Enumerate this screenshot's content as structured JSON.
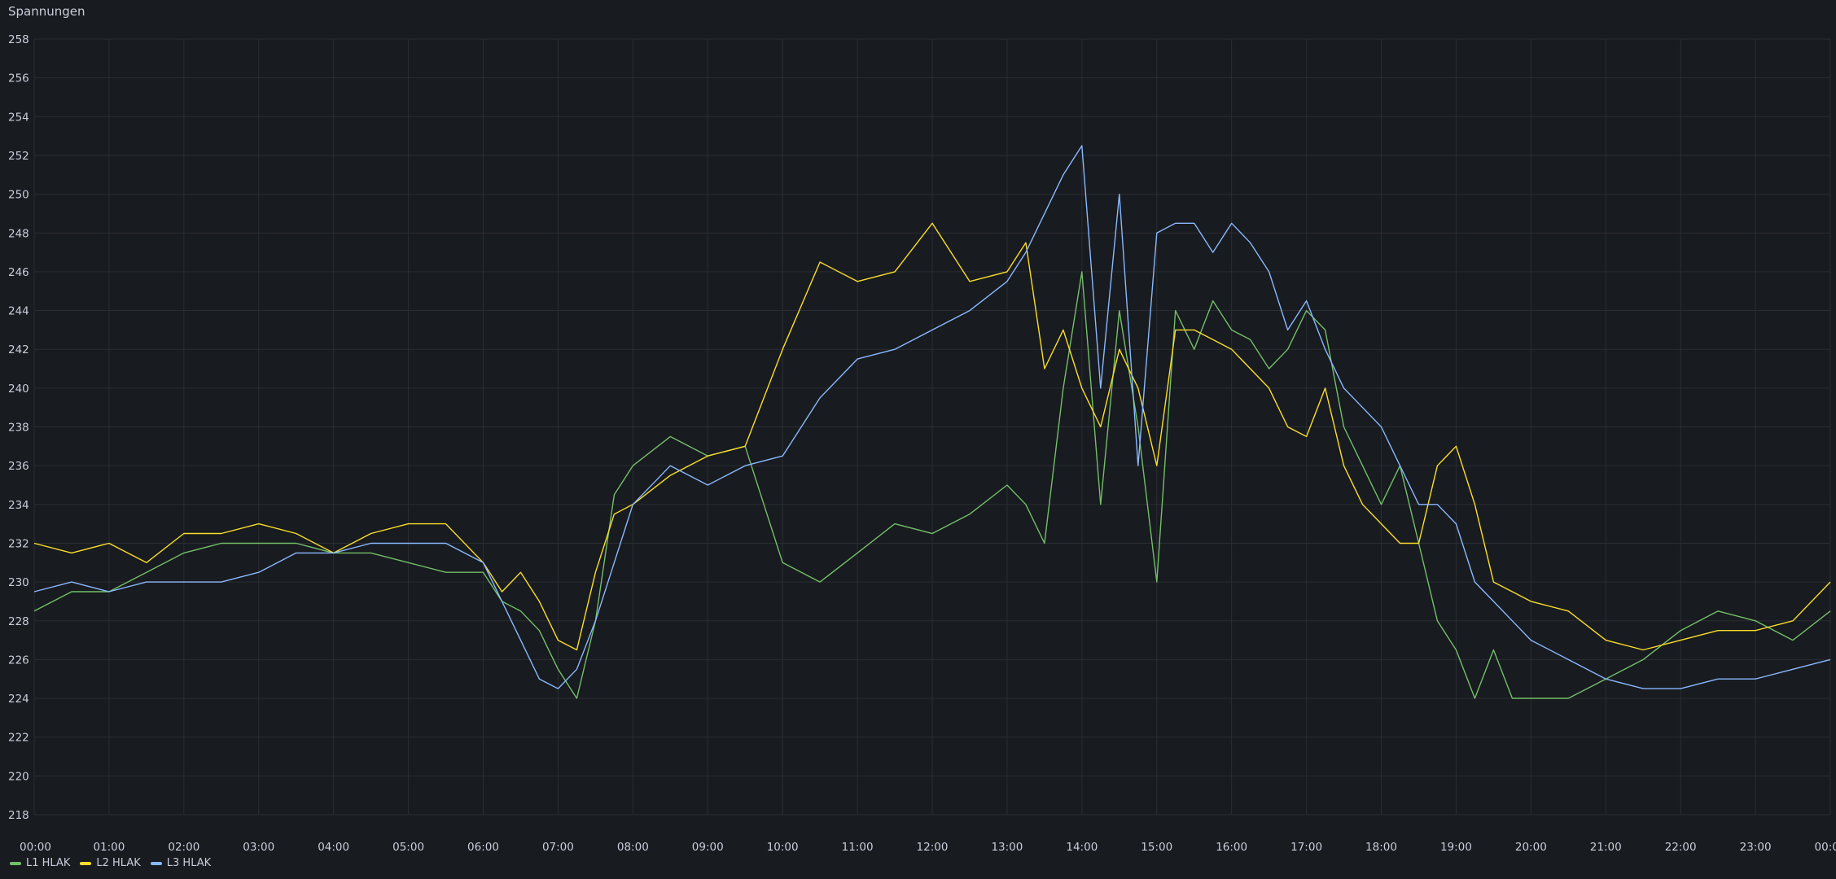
{
  "panel": {
    "title": "Spannungen"
  },
  "legend": [
    {
      "label": "L1 HLAK",
      "color": "#73bf69"
    },
    {
      "label": "L2 HLAK",
      "color": "#fade2a"
    },
    {
      "label": "L3 HLAK",
      "color": "#8ab8ff"
    }
  ],
  "chart_data": {
    "type": "line",
    "title": "Spannungen",
    "xlabel": "",
    "ylabel": "",
    "ylim": [
      217,
      258
    ],
    "yticks": [
      218,
      220,
      222,
      224,
      226,
      228,
      230,
      232,
      234,
      236,
      238,
      240,
      242,
      244,
      246,
      248,
      250,
      252,
      254,
      256,
      258
    ],
    "xticks": [
      "00:00",
      "01:00",
      "02:00",
      "03:00",
      "04:00",
      "05:00",
      "06:00",
      "07:00",
      "08:00",
      "09:00",
      "10:00",
      "11:00",
      "12:00",
      "13:00",
      "14:00",
      "15:00",
      "16:00",
      "17:00",
      "18:00",
      "19:00",
      "20:00",
      "21:00",
      "22:00",
      "23:00",
      "00:00"
    ],
    "grid": true,
    "legend_position": "bottom-left",
    "x": [
      "00:00",
      "00:30",
      "01:00",
      "01:30",
      "02:00",
      "02:30",
      "03:00",
      "03:30",
      "04:00",
      "04:30",
      "05:00",
      "05:30",
      "06:00",
      "06:15",
      "06:30",
      "06:45",
      "07:00",
      "07:15",
      "07:30",
      "07:45",
      "08:00",
      "08:30",
      "09:00",
      "09:30",
      "10:00",
      "10:30",
      "11:00",
      "11:30",
      "12:00",
      "12:30",
      "13:00",
      "13:15",
      "13:30",
      "13:45",
      "14:00",
      "14:15",
      "14:30",
      "14:45",
      "15:00",
      "15:15",
      "15:30",
      "15:45",
      "16:00",
      "16:15",
      "16:30",
      "16:45",
      "17:00",
      "17:15",
      "17:30",
      "17:45",
      "18:00",
      "18:15",
      "18:30",
      "18:45",
      "19:00",
      "19:15",
      "19:30",
      "19:45",
      "20:00",
      "20:30",
      "21:00",
      "21:30",
      "22:00",
      "22:30",
      "23:00",
      "23:30",
      "00:00"
    ],
    "series": [
      {
        "name": "L1 HLAK",
        "color": "#73bf69",
        "values": [
          228.5,
          229.5,
          229.5,
          230.5,
          231.5,
          232.0,
          232.0,
          232.0,
          231.5,
          231.5,
          231.0,
          230.5,
          230.5,
          229.0,
          228.5,
          227.5,
          225.5,
          224.0,
          228.0,
          234.5,
          236.0,
          237.5,
          236.5,
          237.0,
          231.0,
          230.0,
          231.5,
          233.0,
          232.5,
          233.5,
          235.0,
          234.0,
          232.0,
          240.0,
          246.0,
          234.0,
          244.0,
          238.0,
          230.0,
          244.0,
          242.0,
          244.5,
          243.0,
          242.5,
          241.0,
          242.0,
          244.0,
          243.0,
          238.0,
          236.0,
          234.0,
          236.0,
          232.0,
          228.0,
          226.5,
          224.0,
          226.5,
          224.0,
          224.0,
          224.0,
          225.0,
          226.0,
          227.5,
          228.5,
          228.0,
          227.0,
          228.5
        ]
      },
      {
        "name": "L2 HLAK",
        "color": "#fade2a",
        "values": [
          232.0,
          231.5,
          232.0,
          231.0,
          232.5,
          232.5,
          233.0,
          232.5,
          231.5,
          232.5,
          233.0,
          233.0,
          231.0,
          229.5,
          230.5,
          229.0,
          227.0,
          226.5,
          230.5,
          233.5,
          234.0,
          235.5,
          236.5,
          237.0,
          242.0,
          246.5,
          245.5,
          246.0,
          248.5,
          245.5,
          246.0,
          247.5,
          241.0,
          243.0,
          240.0,
          238.0,
          242.0,
          240.0,
          236.0,
          243.0,
          243.0,
          242.5,
          242.0,
          241.0,
          240.0,
          238.0,
          237.5,
          240.0,
          236.0,
          234.0,
          233.0,
          232.0,
          232.0,
          236.0,
          237.0,
          234.0,
          230.0,
          229.5,
          229.0,
          228.5,
          227.0,
          226.5,
          227.0,
          227.5,
          227.5,
          228.0,
          230.0
        ]
      },
      {
        "name": "L3 HLAK",
        "color": "#8ab8ff",
        "values": [
          229.5,
          230.0,
          229.5,
          230.0,
          230.0,
          230.0,
          230.5,
          231.5,
          231.5,
          232.0,
          232.0,
          232.0,
          231.0,
          229.0,
          227.0,
          225.0,
          224.5,
          225.5,
          228.0,
          231.0,
          234.0,
          236.0,
          235.0,
          236.0,
          236.5,
          239.5,
          241.5,
          242.0,
          243.0,
          244.0,
          245.5,
          247.0,
          249.0,
          251.0,
          252.5,
          240.0,
          250.0,
          236.0,
          248.0,
          248.5,
          248.5,
          247.0,
          248.5,
          247.5,
          246.0,
          243.0,
          244.5,
          242.0,
          240.0,
          239.0,
          238.0,
          236.0,
          234.0,
          234.0,
          233.0,
          230.0,
          229.0,
          228.0,
          227.0,
          226.0,
          225.0,
          224.5,
          224.5,
          225.0,
          225.0,
          225.5,
          226.0
        ]
      }
    ]
  }
}
